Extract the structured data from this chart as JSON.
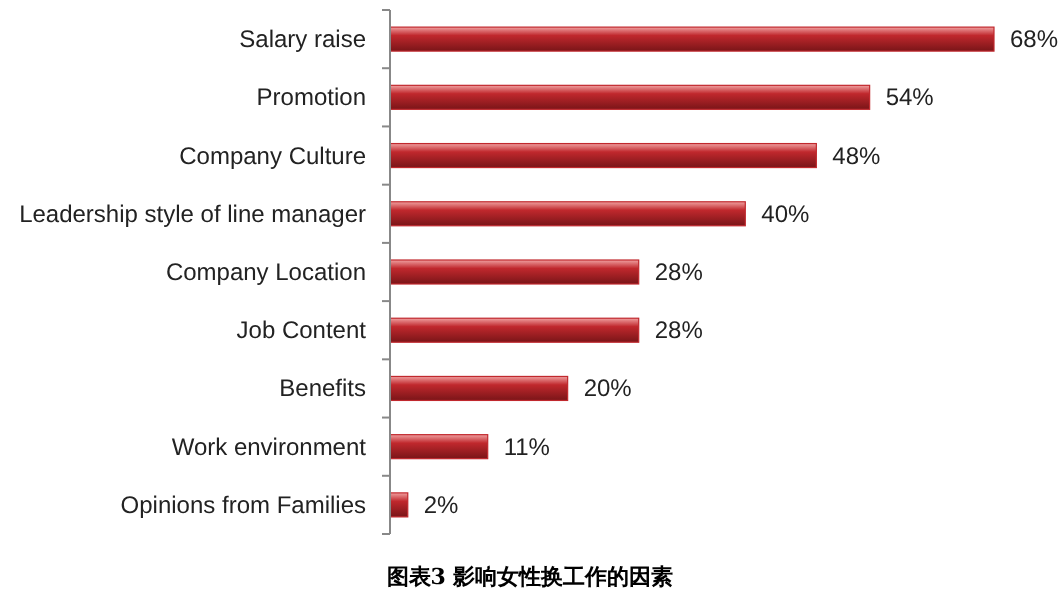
{
  "chart_data": {
    "type": "bar",
    "orientation": "horizontal",
    "title": "图表3 影响女性换工作的因素",
    "categories": [
      "Salary raise",
      "Promotion",
      "Company Culture",
      "Leadership style of line manager",
      "Company Location",
      "Job Content",
      "Benefits",
      "Work environment",
      "Opinions from Families"
    ],
    "values": [
      68,
      54,
      48,
      40,
      28,
      28,
      20,
      11,
      2
    ],
    "value_labels": [
      "68%",
      "54%",
      "48%",
      "40%",
      "28%",
      "28%",
      "20%",
      "11%",
      "2%"
    ],
    "color": "#c0282d"
  }
}
